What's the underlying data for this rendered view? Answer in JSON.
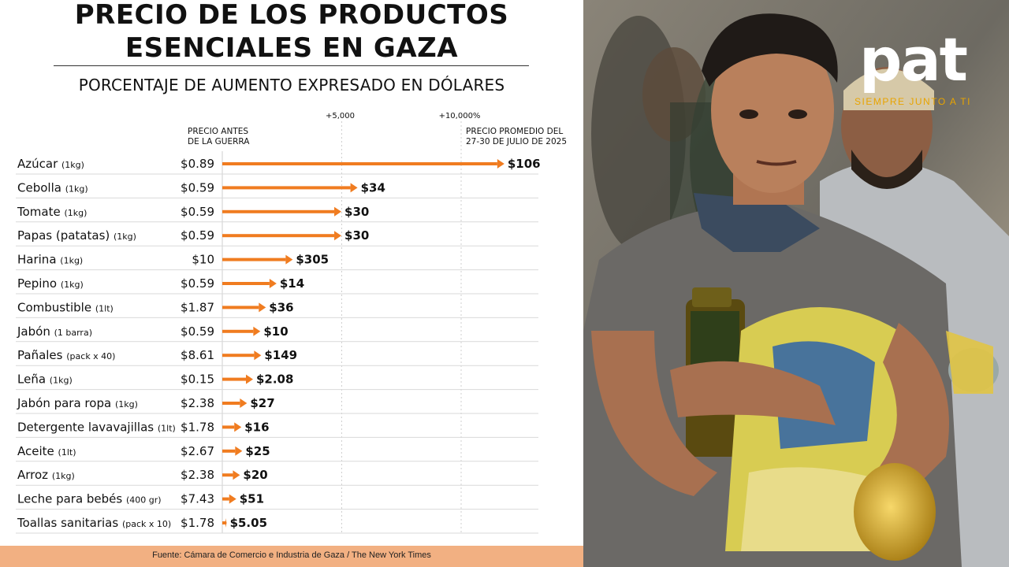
{
  "title_line1": "PRECIO DE LOS PRODUCTOS",
  "title_line2": "ESENCIALES EN GAZA",
  "subtitle": "PORCENTAJE DE AUMENTO EXPRESADO EN DÓLARES",
  "source": "Fuente: Cámara de Comercio e Industria de Gaza / The New York Times",
  "logo": {
    "word": "pat",
    "tagline": "SIEMPRE JUNTO A TI"
  },
  "colors": {
    "accent": "#f07c20",
    "source_bar": "#f2b082",
    "text": "#111111"
  },
  "chart_data": {
    "type": "bar",
    "orientation": "horizontal",
    "axis_tick_labels": [
      "+5,000",
      "+10,000%"
    ],
    "axis_ticks": [
      5000,
      10000
    ],
    "xlim": [
      0,
      12000
    ],
    "col_before_header": [
      "PRECIO ANTES",
      "DE LA GUERRA"
    ],
    "col_after_header": [
      "PRECIO PROMEDIO DEL",
      "27-30 DE JULIO DE 2025"
    ],
    "rows": [
      {
        "label": "Azúcar",
        "unit": "(1kg)",
        "before": "$0.89",
        "after": "$106",
        "increase_pct": 11810
      },
      {
        "label": "Cebolla",
        "unit": "(1kg)",
        "before": "$0.59",
        "after": "$34",
        "increase_pct": 5663
      },
      {
        "label": "Tomate",
        "unit": "(1kg)",
        "before": "$0.59",
        "after": "$30",
        "increase_pct": 4985
      },
      {
        "label": "Papas (patatas)",
        "unit": "(1kg)",
        "before": "$0.59",
        "after": "$30",
        "increase_pct": 4985
      },
      {
        "label": "Harina",
        "unit": "(1kg)",
        "before": "$10",
        "after": "$305",
        "increase_pct": 2950
      },
      {
        "label": "Pepino",
        "unit": "(1kg)",
        "before": "$0.59",
        "after": "$14",
        "increase_pct": 2273
      },
      {
        "label": "Combustible",
        "unit": "(1lt)",
        "before": "$1.87",
        "after": "$36",
        "increase_pct": 1825
      },
      {
        "label": "Jabón",
        "unit": "(1 barra)",
        "before": "$0.59",
        "after": "$10",
        "increase_pct": 1595
      },
      {
        "label": "Pañales",
        "unit": "(pack x 40)",
        "before": "$8.61",
        "after": "$149",
        "increase_pct": 1630
      },
      {
        "label": "Leña",
        "unit": "(1kg)",
        "before": "$0.15",
        "after": "$2.08",
        "increase_pct": 1287
      },
      {
        "label": "Jabón para ropa",
        "unit": "(1kg)",
        "before": "$2.38",
        "after": "$27",
        "increase_pct": 1034
      },
      {
        "label": "Detergente lavavajillas",
        "unit": "(1lt)",
        "before": "$1.78",
        "after": "$16",
        "increase_pct": 799
      },
      {
        "label": "Aceite",
        "unit": "(1lt)",
        "before": "$2.67",
        "after": "$25",
        "increase_pct": 836
      },
      {
        "label": "Arroz",
        "unit": "(1kg)",
        "before": "$2.38",
        "after": "$20",
        "increase_pct": 740
      },
      {
        "label": "Leche para bebés",
        "unit": "(400 gr)",
        "before": "$7.43",
        "after": "$51",
        "increase_pct": 586
      },
      {
        "label": "Toallas sanitarias",
        "unit": "(pack x 10)",
        "before": "$1.78",
        "after": "$5.05",
        "increase_pct": 184
      }
    ]
  }
}
